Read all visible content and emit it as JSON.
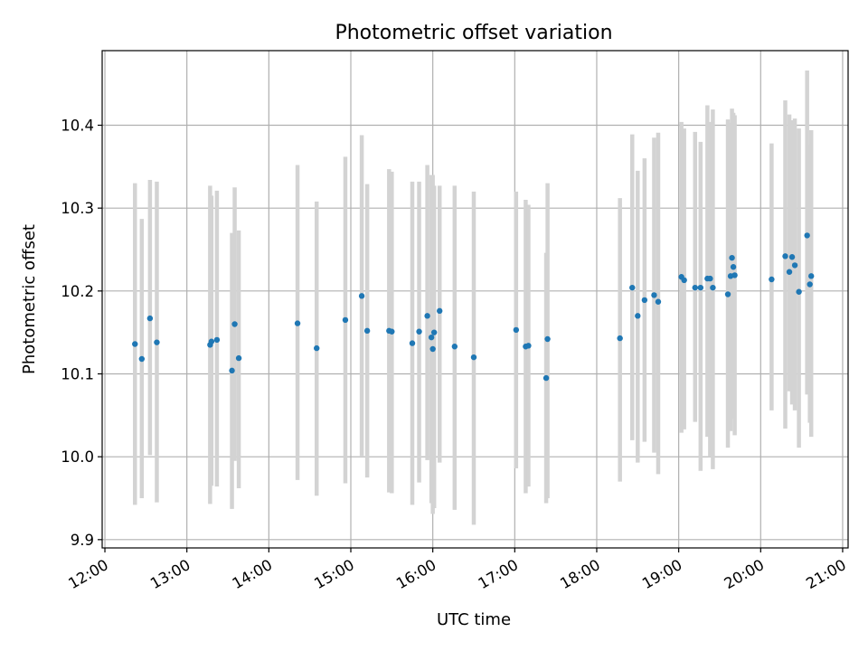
{
  "chart_data": {
    "type": "scatter",
    "title": "Photometric offset variation",
    "xlabel": "UTC time",
    "ylabel": "Photometric offset",
    "x_ticks": [
      "12:00",
      "13:00",
      "14:00",
      "15:00",
      "16:00",
      "17:00",
      "18:00",
      "19:00",
      "20:00",
      "21:00"
    ],
    "y_ticks": [
      "9.9",
      "10.0",
      "10.1",
      "10.2",
      "10.3",
      "10.4"
    ],
    "xlim": [
      "11:58",
      "21:04"
    ],
    "ylim": [
      9.89,
      10.49
    ],
    "grid": true,
    "point_color": "#1f77b4",
    "errorbar_color": "#d3d3d3",
    "series": [
      {
        "x": [
          "12:22",
          "12:27",
          "12:33",
          "12:38",
          "13:17",
          "13:18",
          "13:22",
          "13:33",
          "13:35",
          "13:38",
          "14:21",
          "14:35",
          "14:56",
          "15:08",
          "15:12",
          "15:28",
          "15:30",
          "15:45",
          "15:50",
          "15:56",
          "15:59",
          "16:00",
          "16:01",
          "16:05",
          "16:16",
          "16:30",
          "17:01",
          "17:08",
          "17:10",
          "17:23",
          "17:24",
          "18:17",
          "18:26",
          "18:30",
          "18:35",
          "18:42",
          "18:45",
          "19:02",
          "19:04",
          "19:12",
          "19:16",
          "19:21",
          "19:23",
          "19:25",
          "19:36",
          "19:38",
          "19:39",
          "19:40",
          "19:41",
          "20:08",
          "20:18",
          "20:21",
          "20:23",
          "20:25",
          "20:28",
          "20:34",
          "20:36",
          "20:37"
        ],
        "y": [
          10.136,
          10.118,
          10.167,
          10.138,
          10.135,
          10.139,
          10.141,
          10.104,
          10.16,
          10.119,
          10.161,
          10.131,
          10.165,
          10.194,
          10.152,
          10.152,
          10.151,
          10.137,
          10.151,
          10.17,
          10.144,
          10.13,
          10.15,
          10.176,
          10.133,
          10.12,
          10.153,
          10.133,
          10.134,
          10.095,
          10.142,
          10.143,
          10.204,
          10.17,
          10.189,
          10.195,
          10.187,
          10.217,
          10.213,
          10.204,
          10.204,
          10.215,
          10.215,
          10.204,
          10.196,
          10.218,
          10.24,
          10.229,
          10.219,
          10.214,
          10.242,
          10.223,
          10.241,
          10.231,
          10.199,
          10.267,
          10.208,
          10.218
        ],
        "yerr_low": [
          9.942,
          9.95,
          10.002,
          9.945,
          9.943,
          9.965,
          9.964,
          9.937,
          9.995,
          9.962,
          9.972,
          9.953,
          9.968,
          10.001,
          9.975,
          9.957,
          9.956,
          9.942,
          9.969,
          9.996,
          9.944,
          9.931,
          9.938,
          9.993,
          9.936,
          9.918,
          9.986,
          9.956,
          9.964,
          9.944,
          9.95,
          9.97,
          10.02,
          9.993,
          10.018,
          10.005,
          9.979,
          10.029,
          10.033,
          10.042,
          9.983,
          10.024,
          10.0,
          9.985,
          10.011,
          10.031,
          10.05,
          10.046,
          10.026,
          10.056,
          10.034,
          10.079,
          10.063,
          10.056,
          10.011,
          10.075,
          10.041,
          10.024
        ],
        "yerr_high": [
          10.33,
          10.287,
          10.334,
          10.332,
          10.327,
          10.315,
          10.321,
          10.27,
          10.325,
          10.273,
          10.352,
          10.308,
          10.362,
          10.388,
          10.329,
          10.347,
          10.344,
          10.332,
          10.332,
          10.352,
          10.34,
          10.34,
          10.327,
          10.327,
          10.327,
          10.32,
          10.32,
          10.31,
          10.304,
          10.246,
          10.33,
          10.312,
          10.389,
          10.345,
          10.36,
          10.385,
          10.391,
          10.404,
          10.396,
          10.392,
          10.38,
          10.424,
          10.404,
          10.419,
          10.407,
          10.403,
          10.42,
          10.415,
          10.412,
          10.378,
          10.43,
          10.413,
          10.406,
          10.408,
          10.396,
          10.466,
          10.376,
          10.394
        ]
      }
    ]
  }
}
